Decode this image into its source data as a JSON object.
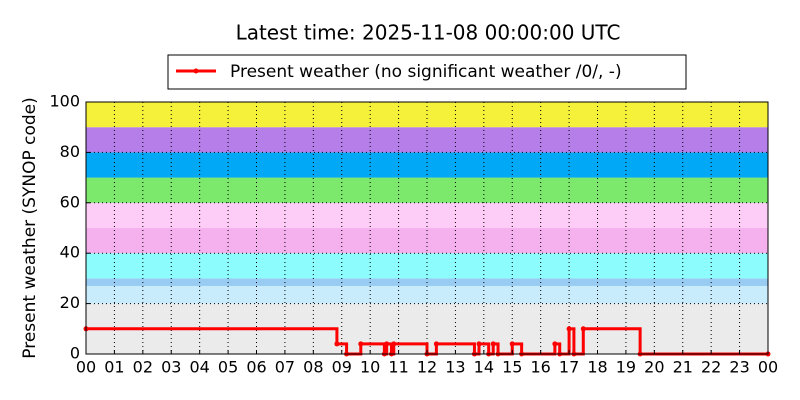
{
  "chart_data": {
    "type": "step",
    "title": "Latest time: 2025-11-08 00:00:00 UTC",
    "y_label": "Present weather (SYNOP code)",
    "series": [
      {
        "name": "Present weather (no significant weather /0/, -)",
        "color": "#ff0000",
        "x": [
          0,
          8.83,
          9.17,
          9.67,
          10.5,
          10.58,
          10.75,
          10.83,
          12.0,
          12.33,
          13.67,
          13.83,
          14.17,
          14.33,
          14.5,
          15.0,
          15.33,
          16.5,
          16.67,
          17.0,
          17.17,
          17.5,
          19.5,
          24
        ],
        "values": [
          10,
          4,
          0,
          4,
          0,
          4,
          0,
          4,
          0,
          4,
          0,
          4,
          0,
          4,
          0,
          4,
          0,
          4,
          0,
          10,
          0,
          10,
          0,
          0
        ]
      }
    ],
    "xlim": [
      0,
      24
    ],
    "xticks": [
      {
        "value": 0,
        "label": "00"
      },
      {
        "value": 1,
        "label": "01"
      },
      {
        "value": 2,
        "label": "02"
      },
      {
        "value": 3,
        "label": "03"
      },
      {
        "value": 4,
        "label": "04"
      },
      {
        "value": 5,
        "label": "05"
      },
      {
        "value": 6,
        "label": "06"
      },
      {
        "value": 7,
        "label": "07"
      },
      {
        "value": 8,
        "label": "08"
      },
      {
        "value": 9,
        "label": "09"
      },
      {
        "value": 10,
        "label": "10"
      },
      {
        "value": 11,
        "label": "11"
      },
      {
        "value": 12,
        "label": "12"
      },
      {
        "value": 13,
        "label": "13"
      },
      {
        "value": 14,
        "label": "14"
      },
      {
        "value": 15,
        "label": "15"
      },
      {
        "value": 16,
        "label": "16"
      },
      {
        "value": 17,
        "label": "17"
      },
      {
        "value": 18,
        "label": "18"
      },
      {
        "value": 19,
        "label": "19"
      },
      {
        "value": 20,
        "label": "20"
      },
      {
        "value": 21,
        "label": "21"
      },
      {
        "value": 22,
        "label": "22"
      },
      {
        "value": 23,
        "label": "23"
      },
      {
        "value": 24,
        "label": "00"
      }
    ],
    "ylim": [
      0,
      100
    ],
    "yticks": [
      0,
      20,
      40,
      60,
      80,
      100
    ],
    "grid": true,
    "legend": "top",
    "bands": [
      {
        "from": 0,
        "to": 20,
        "color": "#ebebeb"
      },
      {
        "from": 20,
        "to": 27,
        "color": "#c8ecfc"
      },
      {
        "from": 27,
        "to": 30,
        "color": "#99ccf2"
      },
      {
        "from": 30,
        "to": 40,
        "color": "#8dfcfc"
      },
      {
        "from": 40,
        "to": 50,
        "color": "#f5b0ee"
      },
      {
        "from": 50,
        "to": 60,
        "color": "#fdcdf7"
      },
      {
        "from": 60,
        "to": 70,
        "color": "#7ce86c"
      },
      {
        "from": 70,
        "to": 80,
        "color": "#00a8f5"
      },
      {
        "from": 80,
        "to": 90,
        "color": "#b57ee8"
      },
      {
        "from": 90,
        "to": 100,
        "color": "#f5f03a"
      }
    ]
  }
}
